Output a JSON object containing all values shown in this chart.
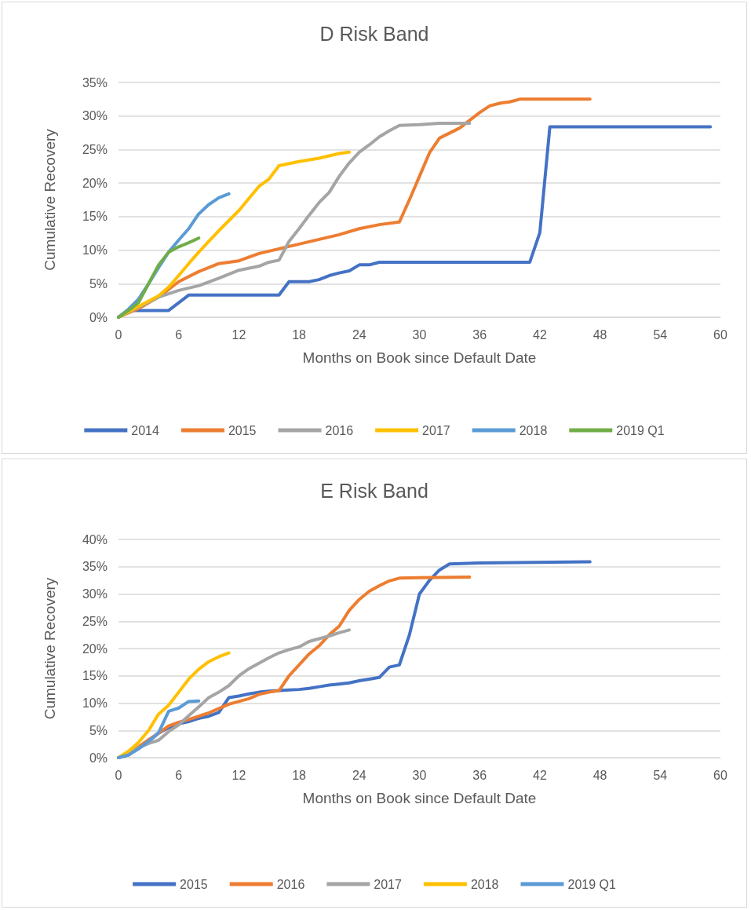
{
  "chart_data": [
    {
      "type": "line",
      "title": "D Risk Band",
      "xlabel": "Months on Book since Default Date",
      "ylabel": "Cumulative Recovery",
      "xlim": [
        0,
        60
      ],
      "xticks": [
        0,
        6,
        12,
        18,
        24,
        30,
        36,
        42,
        48,
        54,
        60
      ],
      "ylim": [
        0,
        35
      ],
      "yticks": [
        {
          "value": 0,
          "label": "0%"
        },
        {
          "value": 5,
          "label": "5%"
        },
        {
          "value": 10,
          "label": "10%"
        },
        {
          "value": 15,
          "label": "15%"
        },
        {
          "value": 20,
          "label": "20%"
        },
        {
          "value": 25,
          "label": "25%"
        },
        {
          "value": 30,
          "label": "30%"
        },
        {
          "value": 35,
          "label": "35%"
        }
      ],
      "grid": "y",
      "legend": "bottom",
      "marker": "none",
      "line_style": "solid",
      "series": [
        {
          "name": "2014",
          "color": "#4472c4",
          "x": [
            0,
            1,
            5,
            7,
            16,
            17,
            19,
            20,
            21,
            22,
            23,
            24,
            25,
            26,
            41,
            42,
            43,
            59
          ],
          "values": [
            0,
            1,
            1,
            3.3,
            3.3,
            5.3,
            5.3,
            5.6,
            6.2,
            6.6,
            6.9,
            7.8,
            7.8,
            8.2,
            8.2,
            12.6,
            28.4,
            28.4
          ]
        },
        {
          "name": "2015",
          "color": "#ed7d31",
          "x": [
            0,
            2,
            4,
            6,
            8,
            10,
            12,
            14,
            16,
            18,
            20,
            22,
            24,
            26,
            28,
            29,
            30,
            31,
            32,
            34,
            36,
            37,
            38,
            39,
            40,
            47
          ],
          "values": [
            0,
            1.3,
            3,
            5.3,
            6.8,
            8,
            8.4,
            9.5,
            10.2,
            10.9,
            11.6,
            12.3,
            13.2,
            13.8,
            14.2,
            17.5,
            21,
            24.5,
            26.7,
            28.2,
            30.5,
            31.5,
            31.9,
            32.1,
            32.5,
            32.5
          ]
        },
        {
          "name": "2016",
          "color": "#a5a5a5",
          "x": [
            0,
            2,
            4,
            6,
            8,
            10,
            12,
            14,
            15,
            16,
            17,
            18,
            19,
            20,
            21,
            22,
            23,
            24,
            25,
            26,
            27,
            28,
            30,
            32,
            35
          ],
          "values": [
            0,
            1.5,
            3,
            4,
            4.7,
            5.8,
            7,
            7.6,
            8.2,
            8.5,
            11.3,
            13.2,
            15.2,
            17.1,
            18.6,
            21,
            23,
            24.6,
            25.7,
            26.9,
            27.8,
            28.6,
            28.7,
            28.9,
            28.9
          ]
        },
        {
          "name": "2017",
          "color": "#ffc000",
          "x": [
            0,
            2,
            4,
            5,
            6,
            7,
            8,
            9,
            10,
            11,
            12,
            13,
            14,
            15,
            16,
            18,
            20,
            22,
            23
          ],
          "values": [
            0,
            1.6,
            3.2,
            4.5,
            6.2,
            8,
            9.7,
            11.3,
            12.9,
            14.4,
            15.9,
            17.7,
            19.5,
            20.6,
            22.6,
            23.2,
            23.7,
            24.4,
            24.6
          ]
        },
        {
          "name": "2018",
          "color": "#5b9bd5",
          "x": [
            0,
            1,
            2,
            3,
            4,
            5,
            6,
            7,
            8,
            9,
            10,
            11
          ],
          "values": [
            0,
            1.2,
            2.7,
            5,
            7.4,
            9.7,
            11.5,
            13.2,
            15.4,
            16.8,
            17.8,
            18.4
          ]
        },
        {
          "name": "2019 Q1",
          "color": "#70ad47",
          "x": [
            0,
            1,
            2,
            3,
            4,
            5,
            6,
            7,
            8
          ],
          "values": [
            0,
            1,
            2.2,
            5,
            7.8,
            9.7,
            10.5,
            11.1,
            11.8
          ]
        }
      ]
    },
    {
      "type": "line",
      "title": "E Risk Band",
      "xlabel": "Months on Book since Default Date",
      "ylabel": "Cumulative Recovery",
      "xlim": [
        0,
        60
      ],
      "xticks": [
        0,
        6,
        12,
        18,
        24,
        30,
        36,
        42,
        48,
        54,
        60
      ],
      "ylim": [
        0,
        40
      ],
      "yticks": [
        {
          "value": 0,
          "label": "0%"
        },
        {
          "value": 5,
          "label": "5%"
        },
        {
          "value": 10,
          "label": "10%"
        },
        {
          "value": 15,
          "label": "15%"
        },
        {
          "value": 20,
          "label": "20%"
        },
        {
          "value": 25,
          "label": "25%"
        },
        {
          "value": 30,
          "label": "30%"
        },
        {
          "value": 35,
          "label": "35%"
        },
        {
          "value": 40,
          "label": "40%"
        }
      ],
      "grid": "y",
      "legend": "bottom",
      "marker": "none",
      "line_style": "solid",
      "series": [
        {
          "name": "2015",
          "color": "#4472c4",
          "x": [
            0,
            1,
            2,
            3,
            4,
            5,
            6,
            7,
            8,
            9,
            10,
            11,
            12,
            13,
            14,
            15,
            16,
            17,
            18,
            19,
            20,
            21,
            22,
            23,
            24,
            25,
            26,
            27,
            28,
            29,
            30,
            31,
            32,
            33,
            36,
            47
          ],
          "values": [
            0,
            0.5,
            1.8,
            3,
            4.5,
            5.5,
            6.2,
            6.6,
            7.2,
            7.6,
            8.3,
            11,
            11.3,
            11.7,
            12,
            12.2,
            12.3,
            12.4,
            12.5,
            12.7,
            13,
            13.3,
            13.5,
            13.7,
            14.1,
            14.4,
            14.7,
            16.6,
            17,
            22.5,
            30,
            32.5,
            34.4,
            35.5,
            35.7,
            35.9
          ]
        },
        {
          "name": "2016",
          "color": "#ed7d31",
          "x": [
            0,
            1,
            2,
            3,
            4,
            5,
            6,
            7,
            8,
            9,
            10,
            11,
            12,
            13,
            14,
            15,
            16,
            17,
            18,
            19,
            20,
            21,
            22,
            23,
            24,
            25,
            26,
            27,
            28,
            30,
            35
          ],
          "values": [
            0,
            0.8,
            2,
            3.3,
            4.5,
            5.8,
            6.5,
            7,
            7.6,
            8.2,
            9,
            9.8,
            10.3,
            10.8,
            11.6,
            12,
            12.3,
            15,
            17,
            19,
            20.5,
            22.5,
            24.1,
            27,
            29,
            30.5,
            31.5,
            32.4,
            32.9,
            33,
            33.1
          ]
        },
        {
          "name": "2017",
          "color": "#a5a5a5",
          "x": [
            0,
            1,
            2,
            3,
            4,
            5,
            6,
            7,
            8,
            9,
            10,
            11,
            12,
            13,
            14,
            15,
            16,
            17,
            18,
            19,
            20,
            21,
            22,
            23
          ],
          "values": [
            0,
            0.8,
            1.8,
            2.6,
            3.2,
            4.8,
            6,
            7.7,
            9.3,
            11,
            12,
            13.2,
            15,
            16.3,
            17.3,
            18.3,
            19.2,
            19.8,
            20.3,
            21.3,
            21.8,
            22.3,
            22.9,
            23.4
          ]
        },
        {
          "name": "2018",
          "color": "#ffc000",
          "x": [
            0,
            1,
            2,
            3,
            4,
            5,
            6,
            7,
            8,
            9,
            10,
            11
          ],
          "values": [
            0,
            1.2,
            2.8,
            5,
            8,
            9.6,
            12,
            14.4,
            16.2,
            17.6,
            18.5,
            19.2
          ]
        },
        {
          "name": "2019 Q1",
          "color": "#5b9bd5",
          "x": [
            0,
            1,
            2,
            3,
            4,
            5,
            6,
            7,
            8
          ],
          "values": [
            0,
            0.5,
            1.6,
            3,
            4.6,
            8.5,
            9.1,
            10.3,
            10.4
          ]
        }
      ]
    }
  ]
}
